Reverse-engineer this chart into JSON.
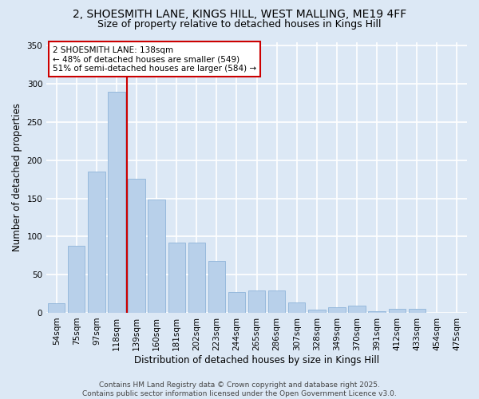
{
  "title_line1": "2, SHOESMITH LANE, KINGS HILL, WEST MALLING, ME19 4FF",
  "title_line2": "Size of property relative to detached houses in Kings Hill",
  "xlabel": "Distribution of detached houses by size in Kings Hill",
  "ylabel": "Number of detached properties",
  "categories": [
    "54sqm",
    "75sqm",
    "97sqm",
    "118sqm",
    "139sqm",
    "160sqm",
    "181sqm",
    "202sqm",
    "223sqm",
    "244sqm",
    "265sqm",
    "286sqm",
    "307sqm",
    "328sqm",
    "349sqm",
    "370sqm",
    "391sqm",
    "412sqm",
    "433sqm",
    "454sqm",
    "475sqm"
  ],
  "values": [
    13,
    88,
    185,
    290,
    176,
    148,
    92,
    92,
    68,
    27,
    29,
    29,
    14,
    4,
    7,
    9,
    2,
    5,
    5,
    0,
    0
  ],
  "bar_color": "#b8d0ea",
  "bar_edge_color": "#8fb4d9",
  "vline_color": "#cc0000",
  "annotation_text": "2 SHOESMITH LANE: 138sqm\n← 48% of detached houses are smaller (549)\n51% of semi-detached houses are larger (584) →",
  "annotation_box_color": "#ffffff",
  "annotation_box_edge": "#cc0000",
  "ylim": [
    0,
    355
  ],
  "yticks": [
    0,
    50,
    100,
    150,
    200,
    250,
    300,
    350
  ],
  "bg_color": "#dce8f5",
  "plot_bg_color": "#dce8f5",
  "grid_color": "#ffffff",
  "footer_text": "Contains HM Land Registry data © Crown copyright and database right 2025.\nContains public sector information licensed under the Open Government Licence v3.0.",
  "title_fontsize": 10,
  "subtitle_fontsize": 9,
  "axis_label_fontsize": 8.5,
  "tick_fontsize": 7.5,
  "annotation_fontsize": 7.5,
  "footer_fontsize": 6.5
}
